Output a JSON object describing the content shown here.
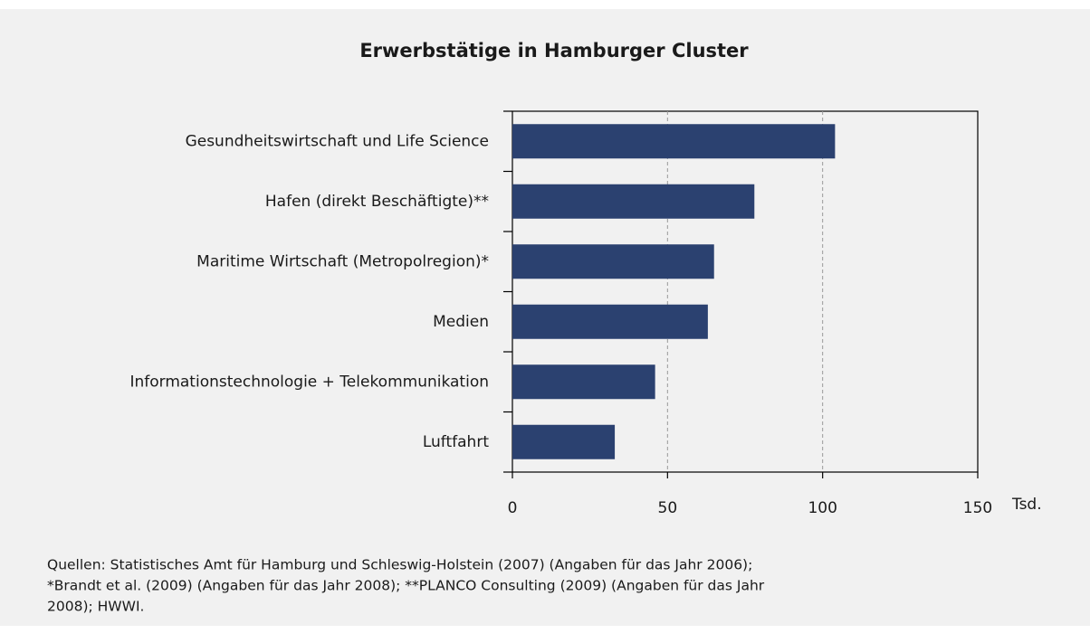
{
  "chart_data": {
    "type": "barh",
    "title": "Erwerbstätige in Hamburger Cluster",
    "categories": [
      "Gesundheitswirtschaft und Life Science",
      "Hafen (direkt Beschäftigte)**",
      "Maritime Wirtschaft (Metropolregion)*",
      "Medien",
      "Informationstechnologie + Telekommunikation",
      "Luftfahrt"
    ],
    "values": [
      104,
      78,
      65,
      63,
      46,
      33
    ],
    "color": "#2b4170",
    "xlim": [
      0,
      150
    ],
    "xticks": [
      0,
      50,
      100,
      150
    ],
    "xlabel": "Tsd.",
    "grid": true,
    "source": [
      "Quellen: Statistisches Amt für Hamburg und Schleswig-Holstein (2007) (Angaben für das Jahr 2006);",
      "*Brandt et al. (2009) (Angaben für das Jahr 2008); **PLANCO Consulting (2009) (Angaben für das Jahr",
      "2008); HWWI."
    ]
  }
}
